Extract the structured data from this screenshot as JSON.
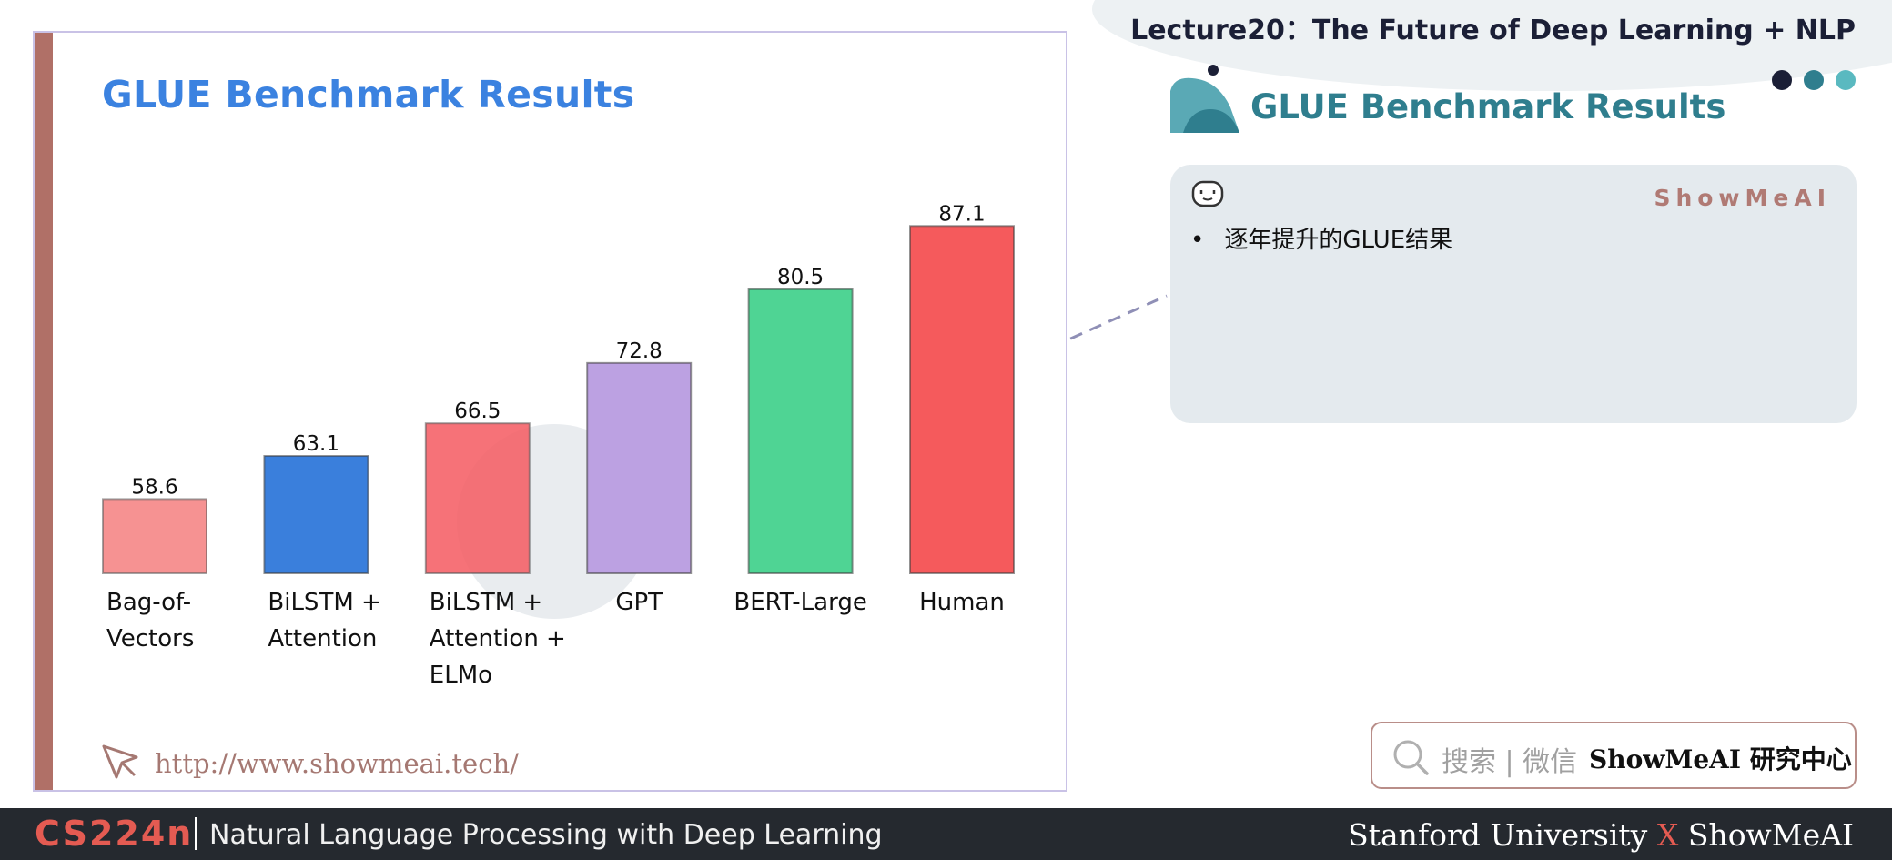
{
  "header": {
    "lecture_title": "Lecture20：The Future of Deep Learning + NLP"
  },
  "slide": {
    "title": "GLUE Benchmark Results",
    "url": "http://www.showmeai.tech/"
  },
  "right_panel": {
    "heading": "GLUE Benchmark Results",
    "brand": "ShowMeAI",
    "bullets": [
      "逐年提升的GLUE结果"
    ]
  },
  "search_box": {
    "label": "搜索 | 微信",
    "brand": "ShowMeAI 研究中心"
  },
  "footer": {
    "course": "CS224n",
    "subtitle": "Natural Language Processing with Deep Learning",
    "right_prefix": "Stanford University",
    "right_x": "X",
    "right_suffix": "ShowMeAI"
  },
  "colors": {
    "accent_brown": "#b07067",
    "title_blue": "#3b82e0",
    "teal": "#2f7e8e",
    "footer_red": "#e45b52"
  },
  "icons": [
    "cursor-arrow-icon",
    "robot-icon",
    "search-icon"
  ],
  "chart_data": {
    "type": "bar",
    "title": "GLUE Benchmark Results",
    "categories": [
      "Bag-of-\nVectors",
      "BiLSTM +\nAttention",
      "BiLSTM +\nAttention +\nELMo",
      "GPT",
      "BERT-Large",
      "Human"
    ],
    "values": [
      58.6,
      63.1,
      66.5,
      72.8,
      80.5,
      87.1
    ],
    "colors": [
      "#f58080",
      "#3a7fdc",
      "#f55f66",
      "#bca1e2",
      "#4fd494",
      "#f55a5c"
    ],
    "xlabel": "",
    "ylabel": "",
    "grid": false,
    "legend": "none"
  }
}
